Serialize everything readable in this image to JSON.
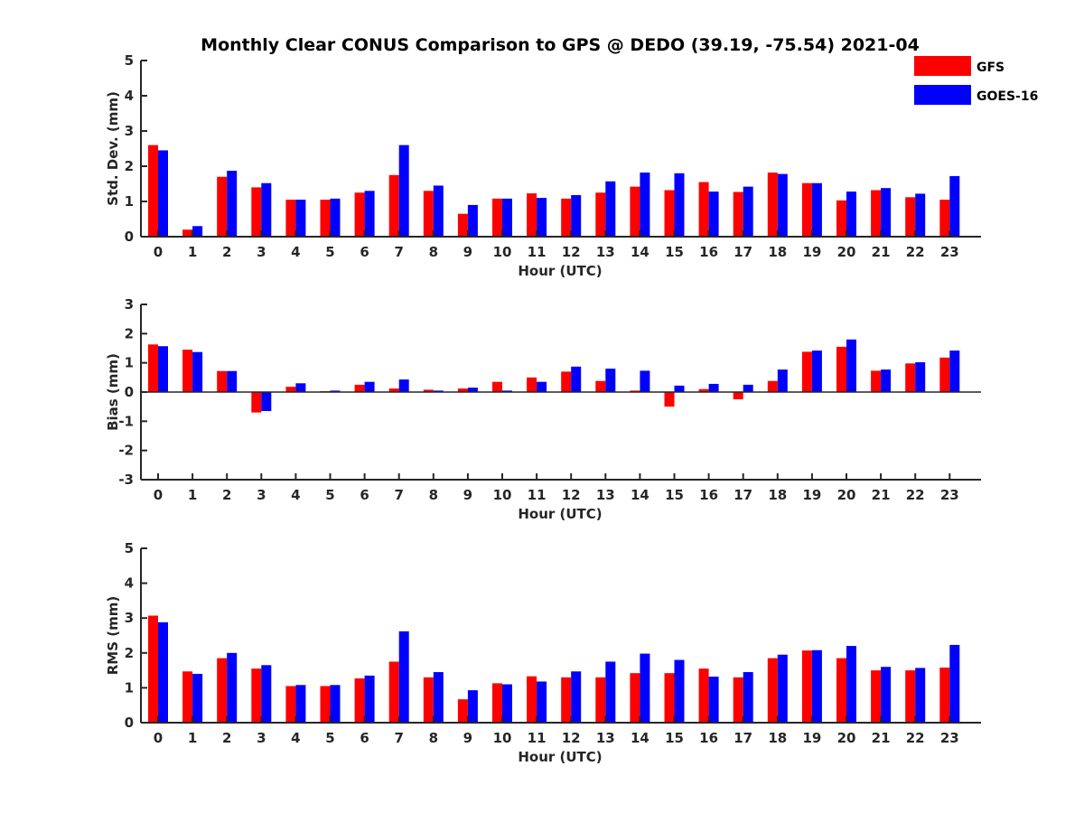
{
  "title": "Monthly Clear CONUS Comparison to GPS @ DEDO (39.19, -75.54) 2021-04",
  "legend": [
    {
      "name": "GFS",
      "color": "#ff0000"
    },
    {
      "name": "GOES-16",
      "color": "#0000ff"
    }
  ],
  "chart_data": [
    {
      "type": "bar",
      "xlabel": "Hour (UTC)",
      "ylabel": "Std. Dev. (mm)",
      "ylim": [
        0,
        5
      ],
      "yticks": [
        0,
        1,
        2,
        3,
        4,
        5
      ],
      "categories": [
        0,
        1,
        2,
        3,
        4,
        5,
        6,
        7,
        8,
        9,
        10,
        11,
        12,
        13,
        14,
        15,
        16,
        17,
        18,
        19,
        20,
        21,
        22,
        23
      ],
      "series": [
        {
          "name": "GFS",
          "color": "#ff0000",
          "values": [
            2.6,
            0.2,
            1.7,
            1.4,
            1.05,
            1.05,
            1.25,
            1.75,
            1.3,
            0.65,
            1.08,
            1.23,
            1.08,
            1.25,
            1.42,
            1.32,
            1.55,
            1.27,
            1.82,
            1.52,
            1.03,
            1.32,
            1.12,
            1.05
          ]
        },
        {
          "name": "GOES-16",
          "color": "#0000ff",
          "values": [
            2.45,
            0.3,
            1.87,
            1.52,
            1.05,
            1.08,
            1.3,
            2.6,
            1.45,
            0.9,
            1.08,
            1.1,
            1.18,
            1.57,
            1.82,
            1.8,
            1.28,
            1.42,
            1.78,
            1.52,
            1.28,
            1.38,
            1.22,
            1.72
          ]
        }
      ]
    },
    {
      "type": "bar",
      "xlabel": "Hour (UTC)",
      "ylabel": "Bias (mm)",
      "ylim": [
        -3,
        3
      ],
      "yticks": [
        -3,
        -2,
        -1,
        0,
        1,
        2,
        3
      ],
      "categories": [
        0,
        1,
        2,
        3,
        4,
        5,
        6,
        7,
        8,
        9,
        10,
        11,
        12,
        13,
        14,
        15,
        16,
        17,
        18,
        19,
        20,
        21,
        22,
        23
      ],
      "series": [
        {
          "name": "GFS",
          "color": "#ff0000",
          "values": [
            1.63,
            1.45,
            0.72,
            -0.7,
            0.18,
            0.03,
            0.25,
            0.12,
            0.08,
            0.12,
            0.35,
            0.5,
            0.7,
            0.38,
            0.05,
            -0.5,
            0.1,
            -0.25,
            0.38,
            1.38,
            1.55,
            0.73,
            0.98,
            1.18
          ]
        },
        {
          "name": "GOES-16",
          "color": "#0000ff",
          "values": [
            1.57,
            1.37,
            0.72,
            -0.65,
            0.3,
            0.05,
            0.35,
            0.43,
            0.05,
            0.15,
            0.05,
            0.35,
            0.87,
            0.8,
            0.73,
            0.22,
            0.28,
            0.25,
            0.77,
            1.42,
            1.8,
            0.77,
            1.02,
            1.42
          ]
        }
      ]
    },
    {
      "type": "bar",
      "xlabel": "Hour (UTC)",
      "ylabel": "RMS (mm)",
      "ylim": [
        0,
        5
      ],
      "yticks": [
        0,
        1,
        2,
        3,
        4,
        5
      ],
      "categories": [
        0,
        1,
        2,
        3,
        4,
        5,
        6,
        7,
        8,
        9,
        10,
        11,
        12,
        13,
        14,
        15,
        16,
        17,
        18,
        19,
        20,
        21,
        22,
        23
      ],
      "series": [
        {
          "name": "GFS",
          "color": "#ff0000",
          "values": [
            3.07,
            1.47,
            1.85,
            1.55,
            1.05,
            1.05,
            1.27,
            1.75,
            1.3,
            0.67,
            1.13,
            1.33,
            1.3,
            1.3,
            1.42,
            1.42,
            1.55,
            1.3,
            1.85,
            2.07,
            1.85,
            1.5,
            1.5,
            1.58
          ]
        },
        {
          "name": "GOES-16",
          "color": "#0000ff",
          "values": [
            2.88,
            1.4,
            2.0,
            1.65,
            1.08,
            1.08,
            1.35,
            2.62,
            1.45,
            0.93,
            1.1,
            1.18,
            1.47,
            1.75,
            1.98,
            1.8,
            1.32,
            1.45,
            1.95,
            2.08,
            2.2,
            1.6,
            1.57,
            2.23
          ]
        }
      ]
    }
  ]
}
